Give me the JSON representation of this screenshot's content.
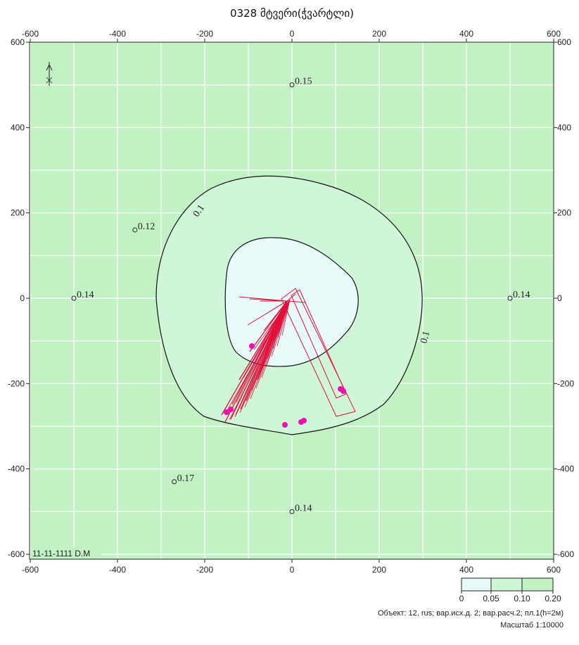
{
  "title": "0328 მტვერი(ჭვარტლი)",
  "x_ticks": [
    -600,
    -400,
    -200,
    0,
    200,
    400,
    600
  ],
  "y_ticks": [
    600,
    400,
    200,
    0,
    -200,
    -400,
    -600
  ],
  "x_range": [
    -600,
    600
  ],
  "y_range": [
    -600,
    600
  ],
  "stamp": "11-11-1111 D.M",
  "contour_labels": [
    "0.1",
    "0.1"
  ],
  "sample_points": [
    {
      "x": 0,
      "y": 500,
      "label": "0.15"
    },
    {
      "x": -360,
      "y": 160,
      "label": "0.12"
    },
    {
      "x": -500,
      "y": 0,
      "label": "0.14"
    },
    {
      "x": 500,
      "y": 0,
      "label": "0.14"
    },
    {
      "x": -270,
      "y": -430,
      "label": "0.17"
    },
    {
      "x": 0,
      "y": -500,
      "label": "0.14"
    }
  ],
  "legend": {
    "ticks": [
      "0",
      "0.05",
      "0.10",
      "0.20"
    ],
    "colors": [
      "#e6faf8",
      "#ccf6d6",
      "#c2f2c4"
    ]
  },
  "footer": {
    "object_line": "Объект: 12, rus; вар.исх.д. 2; вар.расч.2; пл.1(h=2м)",
    "scale_line": "Масштаб 1:10000"
  },
  "colors": {
    "background": "#c2f2c4",
    "contour_outer_fill": "#cff6d8",
    "contour_inner_fill": "#e8fbfa",
    "grid": "#ffffff",
    "sources": "#e0103a",
    "source_dots": "#ee10b0"
  }
}
